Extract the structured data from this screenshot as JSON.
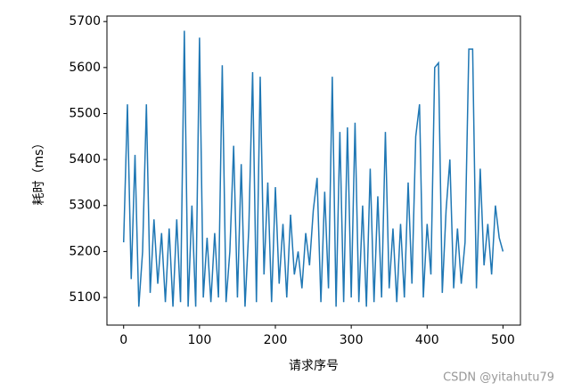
{
  "chart_data": {
    "type": "line",
    "xlabel": "请求序号",
    "ylabel": "耗时（ms）",
    "watermark": "CSDN @yitahutu79",
    "x": [
      0,
      5,
      10,
      15,
      20,
      25,
      30,
      35,
      40,
      45,
      50,
      55,
      60,
      65,
      70,
      75,
      80,
      85,
      90,
      95,
      100,
      105,
      110,
      115,
      120,
      125,
      130,
      135,
      140,
      145,
      150,
      155,
      160,
      165,
      170,
      175,
      180,
      185,
      190,
      195,
      200,
      205,
      210,
      215,
      220,
      225,
      230,
      235,
      240,
      245,
      250,
      255,
      260,
      265,
      270,
      275,
      280,
      285,
      290,
      295,
      300,
      305,
      310,
      315,
      320,
      325,
      330,
      335,
      340,
      345,
      350,
      355,
      360,
      365,
      370,
      375,
      380,
      385,
      390,
      395,
      400,
      405,
      410,
      415,
      420,
      425,
      430,
      435,
      440,
      445,
      450,
      455,
      460,
      465,
      470,
      475,
      480,
      485,
      490,
      495,
      500
    ],
    "series": [
      {
        "color": "#1f77b4",
        "values": [
          5220,
          5520,
          5140,
          5410,
          5080,
          5200,
          5520,
          5110,
          5270,
          5130,
          5240,
          5090,
          5250,
          5080,
          5270,
          5090,
          5680,
          5080,
          5300,
          5080,
          5665,
          5100,
          5230,
          5090,
          5240,
          5100,
          5605,
          5090,
          5200,
          5430,
          5100,
          5390,
          5080,
          5250,
          5590,
          5090,
          5580,
          5150,
          5350,
          5090,
          5340,
          5130,
          5260,
          5100,
          5280,
          5150,
          5200,
          5120,
          5240,
          5170,
          5290,
          5360,
          5090,
          5330,
          5120,
          5580,
          5080,
          5460,
          5090,
          5470,
          5100,
          5480,
          5090,
          5300,
          5080,
          5380,
          5090,
          5320,
          5100,
          5460,
          5120,
          5250,
          5090,
          5260,
          5100,
          5350,
          5130,
          5450,
          5520,
          5100,
          5260,
          5150,
          5600,
          5610,
          5110,
          5290,
          5400,
          5120,
          5250,
          5130,
          5220,
          5640,
          5640,
          5120,
          5380,
          5170,
          5260,
          5150,
          5300,
          5230,
          5200
        ]
      }
    ],
    "xlim": [
      -22,
      523
    ],
    "ylim": [
      5040,
      5712
    ],
    "xticks": [
      0,
      100,
      200,
      300,
      400,
      500
    ],
    "yticks": [
      5100,
      5200,
      5300,
      5400,
      5500,
      5600,
      5700
    ]
  }
}
